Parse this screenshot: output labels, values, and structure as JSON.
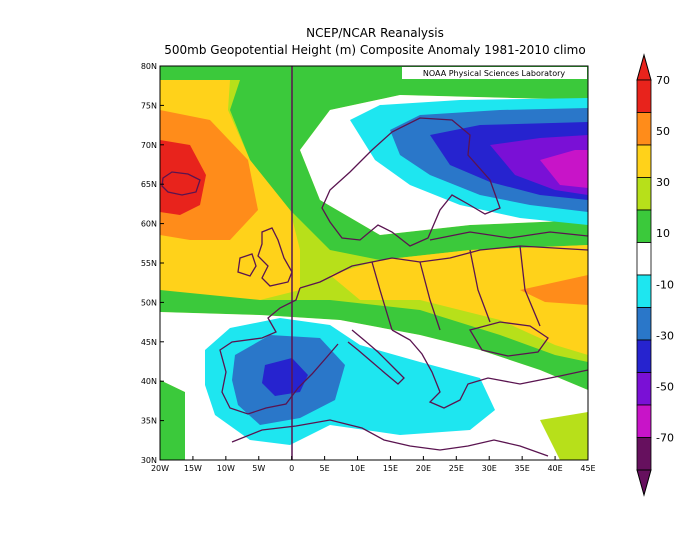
{
  "titles": {
    "line1": "NCEP/NCAR Reanalysis",
    "line2": "500mb Geopotential Height (m) Composite Anomaly 1981-2010 climo"
  },
  "credit": "NOAA Physical Sciences Laboratory",
  "axes": {
    "lon_ticks": [
      "20W",
      "15W",
      "10W",
      "5W",
      "0",
      "5E",
      "10E",
      "15E",
      "20E",
      "25E",
      "30E",
      "35E",
      "40E",
      "45E"
    ],
    "lat_ticks": [
      "30N",
      "35N",
      "40N",
      "45N",
      "50N",
      "55N",
      "60N",
      "65N",
      "70N",
      "75N",
      "80N"
    ],
    "lon_range": [
      -20,
      45
    ],
    "lat_range": [
      30,
      80
    ]
  },
  "colorbar": {
    "labels": [
      "70",
      "50",
      "30",
      "10",
      "-10",
      "-30",
      "-50",
      "-70"
    ],
    "colors": [
      "#e8231c",
      "#ff8c1a",
      "#ffd21a",
      "#b7e01a",
      "#3bc93b",
      "#ffffff",
      "#1ee6f0",
      "#2a77c9",
      "#2623cf",
      "#7a10d6",
      "#c814c8",
      "#66105e"
    ]
  },
  "colors": {
    "red": "#e8231c",
    "orange": "#ff8c1a",
    "yellow": "#ffd21a",
    "yellowgreen": "#b7e01a",
    "green": "#3bc93b",
    "white": "#ffffff",
    "cyan": "#1ee6f0",
    "blue": "#2a77c9",
    "darkblue": "#2623cf",
    "violet": "#7a10d6",
    "magenta": "#c814c8",
    "coast": "#5a1450"
  }
}
